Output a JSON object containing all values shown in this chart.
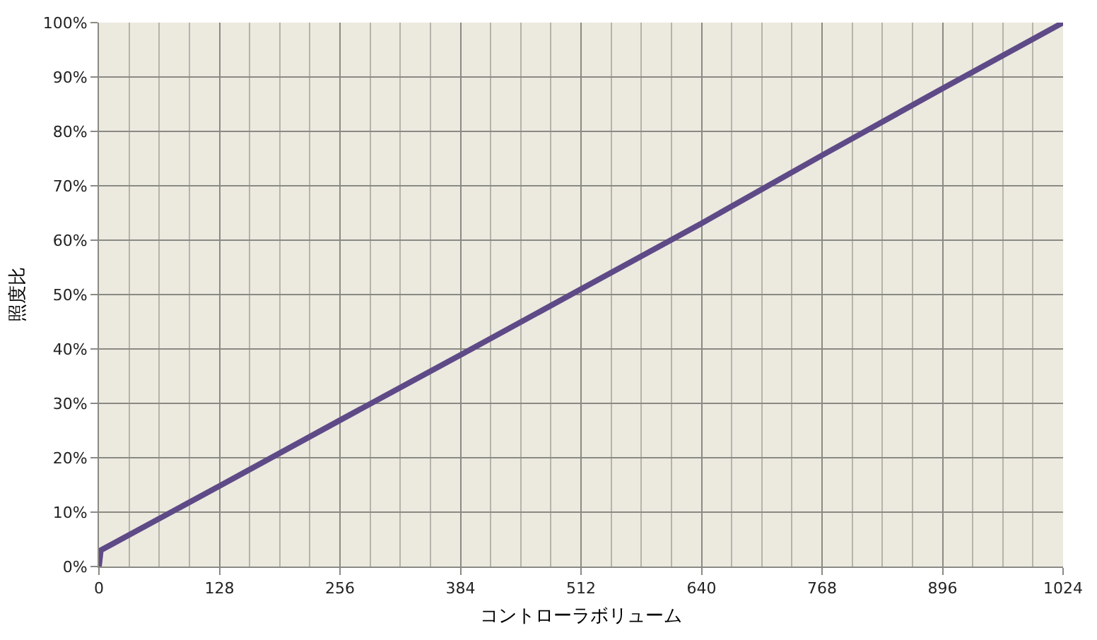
{
  "chart_data": {
    "type": "line",
    "xlabel": "コントローラボリューム",
    "ylabel": "照度比",
    "x": [
      0,
      2,
      128,
      256,
      384,
      512,
      640,
      768,
      896,
      1024
    ],
    "series": [
      {
        "color": "#5e4a87",
        "values": [
          0,
          3,
          14.8,
          26.9,
          38.9,
          51,
          63.1,
          75.6,
          87.9,
          100
        ]
      }
    ],
    "xlim": [
      0,
      1024
    ],
    "xticks": [
      0,
      {
        "value": 32,
        "label": null
      },
      {
        "value": 64,
        "label": null
      },
      {
        "value": 96,
        "label": null
      },
      128,
      {
        "value": 160,
        "label": null
      },
      {
        "value": 192,
        "label": null
      },
      {
        "value": 224,
        "label": null
      },
      256,
      {
        "value": 288,
        "label": null
      },
      {
        "value": 320,
        "label": null
      },
      {
        "value": 352,
        "label": null
      },
      384,
      {
        "value": 416,
        "label": null
      },
      {
        "value": 448,
        "label": null
      },
      {
        "value": 480,
        "label": null
      },
      512,
      {
        "value": 544,
        "label": null
      },
      {
        "value": 576,
        "label": null
      },
      {
        "value": 608,
        "label": null
      },
      640,
      {
        "value": 672,
        "label": null
      },
      {
        "value": 704,
        "label": null
      },
      {
        "value": 736,
        "label": null
      },
      768,
      {
        "value": 800,
        "label": null
      },
      {
        "value": 832,
        "label": null
      },
      {
        "value": 864,
        "label": null
      },
      896,
      {
        "value": 928,
        "label": null
      },
      {
        "value": 960,
        "label": null
      },
      {
        "value": 992,
        "label": null
      },
      1024
    ],
    "ylim": [
      0,
      100
    ],
    "yticks": [
      {
        "value": 0,
        "label": "0%"
      },
      {
        "value": 10,
        "label": "10%"
      },
      {
        "value": 20,
        "label": "20%"
      },
      {
        "value": 30,
        "label": "30%"
      },
      {
        "value": 40,
        "label": "40%"
      },
      {
        "value": 50,
        "label": "50%"
      },
      {
        "value": 60,
        "label": "60%"
      },
      {
        "value": 70,
        "label": "70%"
      },
      {
        "value": 80,
        "label": "80%"
      },
      {
        "value": 90,
        "label": "90%"
      },
      {
        "value": 100,
        "label": "100%"
      }
    ],
    "grid": true,
    "legend": false,
    "marker": "none",
    "line_style": "solid"
  }
}
